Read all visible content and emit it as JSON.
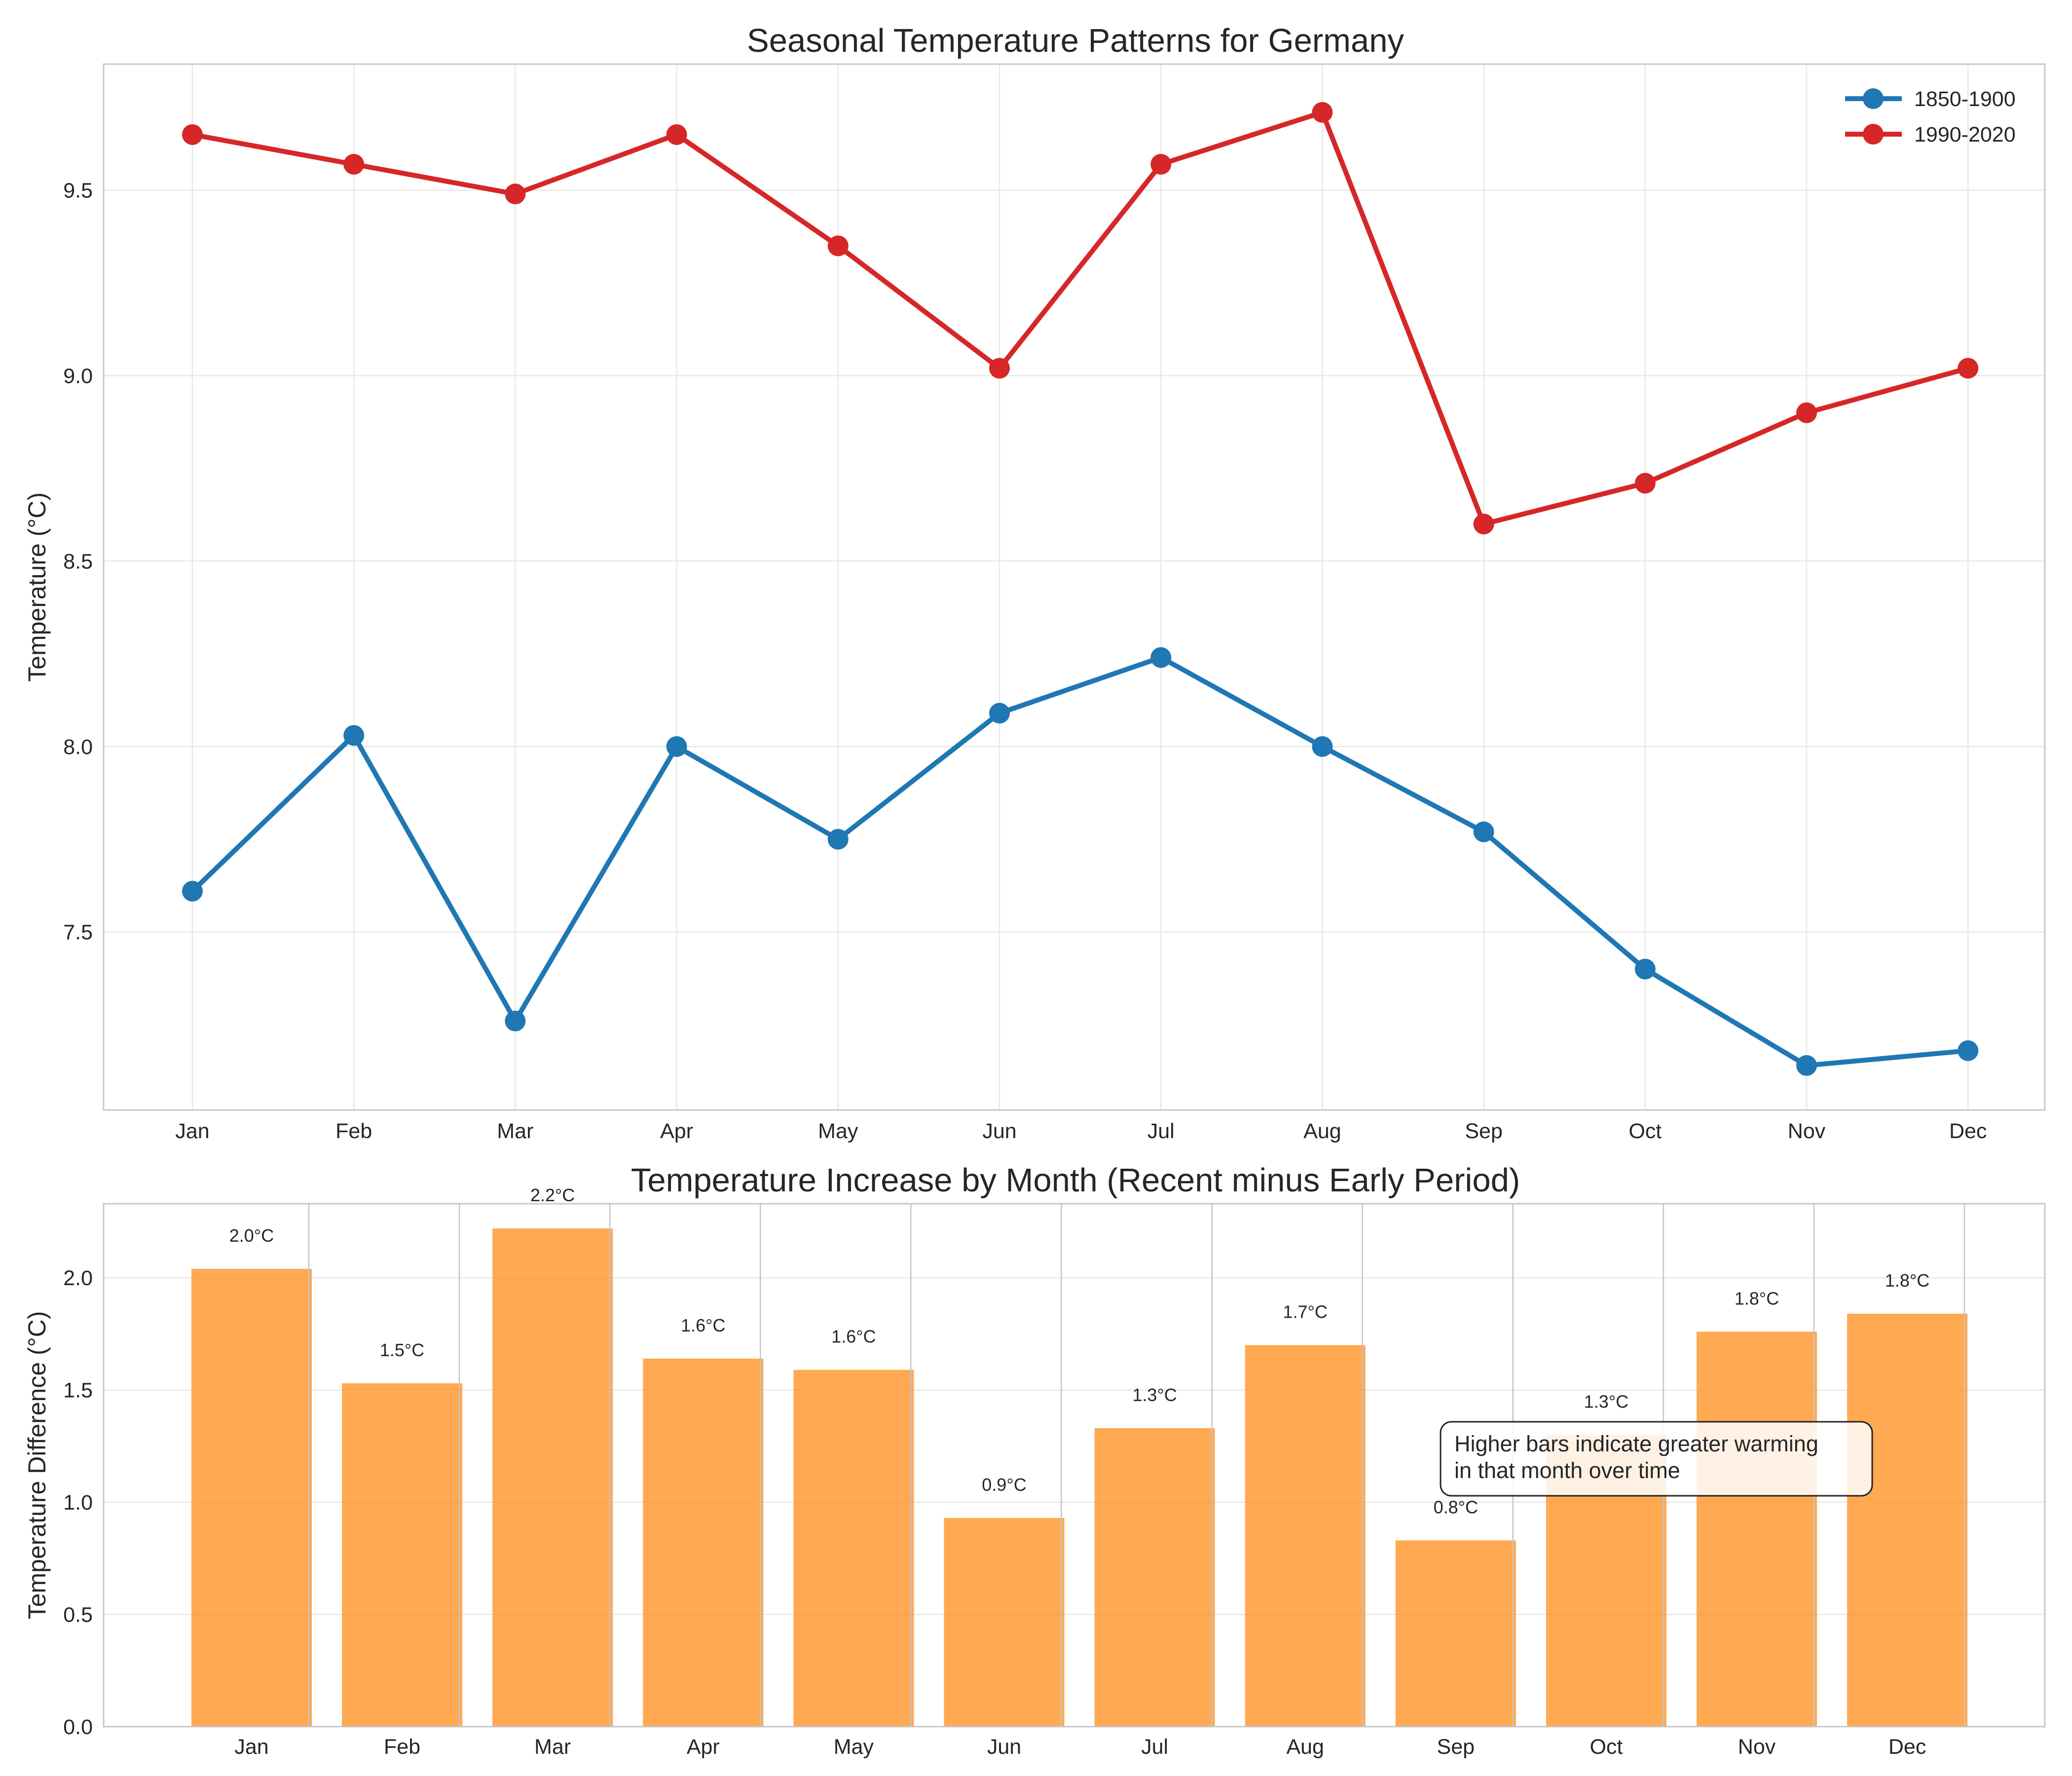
{
  "chart_data": [
    {
      "type": "line",
      "title": "Seasonal Temperature Patterns for Germany",
      "xlabel": "",
      "ylabel": "Temperature (°C)",
      "categories": [
        "Jan",
        "Feb",
        "Mar",
        "Apr",
        "May",
        "Jun",
        "Jul",
        "Aug",
        "Sep",
        "Oct",
        "Nov",
        "Dec"
      ],
      "yticks": [
        7.5,
        8.0,
        8.5,
        9.0,
        9.5
      ],
      "ytick_labels": [
        "7.5",
        "8.0",
        "8.5",
        "9.0",
        "9.5"
      ],
      "ylim": [
        7.02,
        9.84
      ],
      "grid": true,
      "legend_position": "top-right",
      "series": [
        {
          "name": "1850-1900",
          "color": "#1f77b4",
          "values": [
            7.61,
            8.03,
            7.26,
            8.0,
            7.75,
            8.09,
            8.24,
            8.0,
            7.77,
            7.4,
            7.14,
            7.18
          ]
        },
        {
          "name": "1990-2020",
          "color": "#d62728",
          "values": [
            9.65,
            9.57,
            9.49,
            9.65,
            9.35,
            9.02,
            9.57,
            9.71,
            8.6,
            8.71,
            8.9,
            9.02
          ]
        }
      ]
    },
    {
      "type": "bar",
      "title": "Temperature Increase by Month (Recent minus Early Period)",
      "xlabel": "",
      "ylabel": "Temperature Difference (°C)",
      "categories": [
        "Jan",
        "Feb",
        "Mar",
        "Apr",
        "May",
        "Jun",
        "Jul",
        "Aug",
        "Sep",
        "Oct",
        "Nov",
        "Dec"
      ],
      "values": [
        2.04,
        1.53,
        2.22,
        1.64,
        1.59,
        0.93,
        1.33,
        1.7,
        0.83,
        1.3,
        1.76,
        1.84
      ],
      "value_labels": [
        "2.0°C",
        "1.5°C",
        "2.2°C",
        "1.6°C",
        "1.6°C",
        "0.9°C",
        "1.3°C",
        "1.7°C",
        "0.8°C",
        "1.3°C",
        "1.8°C",
        "1.8°C"
      ],
      "yticks": [
        0.0,
        0.5,
        1.0,
        1.5,
        2.0
      ],
      "ytick_labels": [
        "0.0",
        "0.5",
        "1.0",
        "1.5",
        "2.0"
      ],
      "ylim": [
        0,
        2.33
      ],
      "grid": true,
      "bar_color": "#ff8c1a",
      "annotation": {
        "lines": [
          "Higher bars indicate greater warming",
          "in that month over time"
        ]
      }
    }
  ]
}
